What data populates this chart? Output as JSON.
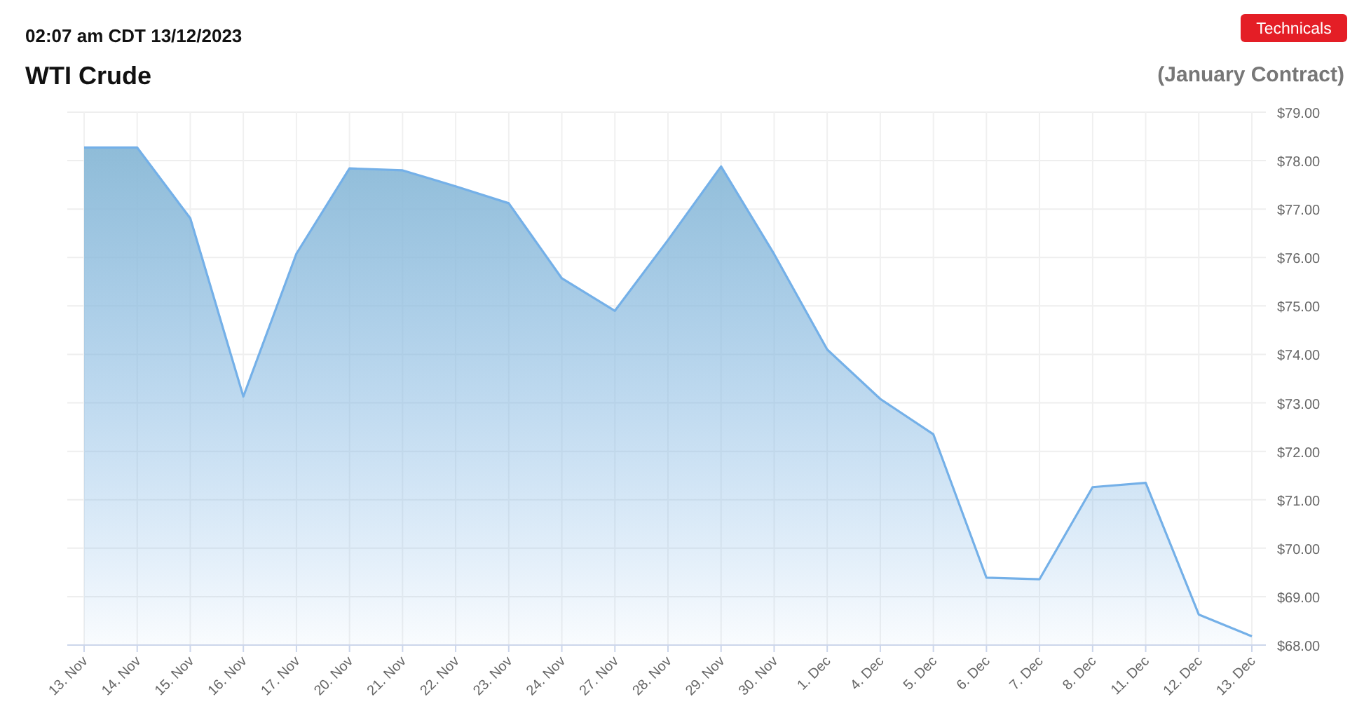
{
  "chart_data": {
    "type": "area",
    "title": "WTI Crude",
    "subtitle": "02:07 am CDT 13/12/2023",
    "annotations": [
      "(January Contract)",
      "Technicals"
    ],
    "categories": [
      "13. Nov",
      "14. Nov",
      "15. Nov",
      "16. Nov",
      "17. Nov",
      "20. Nov",
      "21. Nov",
      "22. Nov",
      "23. Nov",
      "24. Nov",
      "27. Nov",
      "28. Nov",
      "29. Nov",
      "30. Nov",
      "1. Dec",
      "4. Dec",
      "5. Dec",
      "6. Dec",
      "7. Dec",
      "8. Dec",
      "11. Dec",
      "12. Dec",
      "13. Dec"
    ],
    "series": [
      {
        "color": "#74b0e8",
        "values": [
          78.27,
          78.27,
          76.81,
          73.13,
          76.08,
          77.84,
          77.8,
          77.47,
          77.12,
          75.57,
          74.9,
          76.36,
          77.88,
          76.07,
          74.1,
          73.08,
          72.35,
          69.39,
          69.36,
          71.26,
          71.35,
          68.63,
          68.18
        ]
      }
    ],
    "ylim": [
      68,
      79
    ],
    "yticks": [
      {
        "value": 68,
        "label": "$68.00"
      },
      {
        "value": 69,
        "label": "$69.00"
      },
      {
        "value": 70,
        "label": "$70.00"
      },
      {
        "value": 71,
        "label": "$71.00"
      },
      {
        "value": 72,
        "label": "$72.00"
      },
      {
        "value": 73,
        "label": "$73.00"
      },
      {
        "value": 74,
        "label": "$74.00"
      },
      {
        "value": 75,
        "label": "$75.00"
      },
      {
        "value": 76,
        "label": "$76.00"
      },
      {
        "value": 77,
        "label": "$77.00"
      },
      {
        "value": 78,
        "label": "$78.00"
      },
      {
        "value": 79,
        "label": "$79.00"
      }
    ],
    "grid": true
  }
}
